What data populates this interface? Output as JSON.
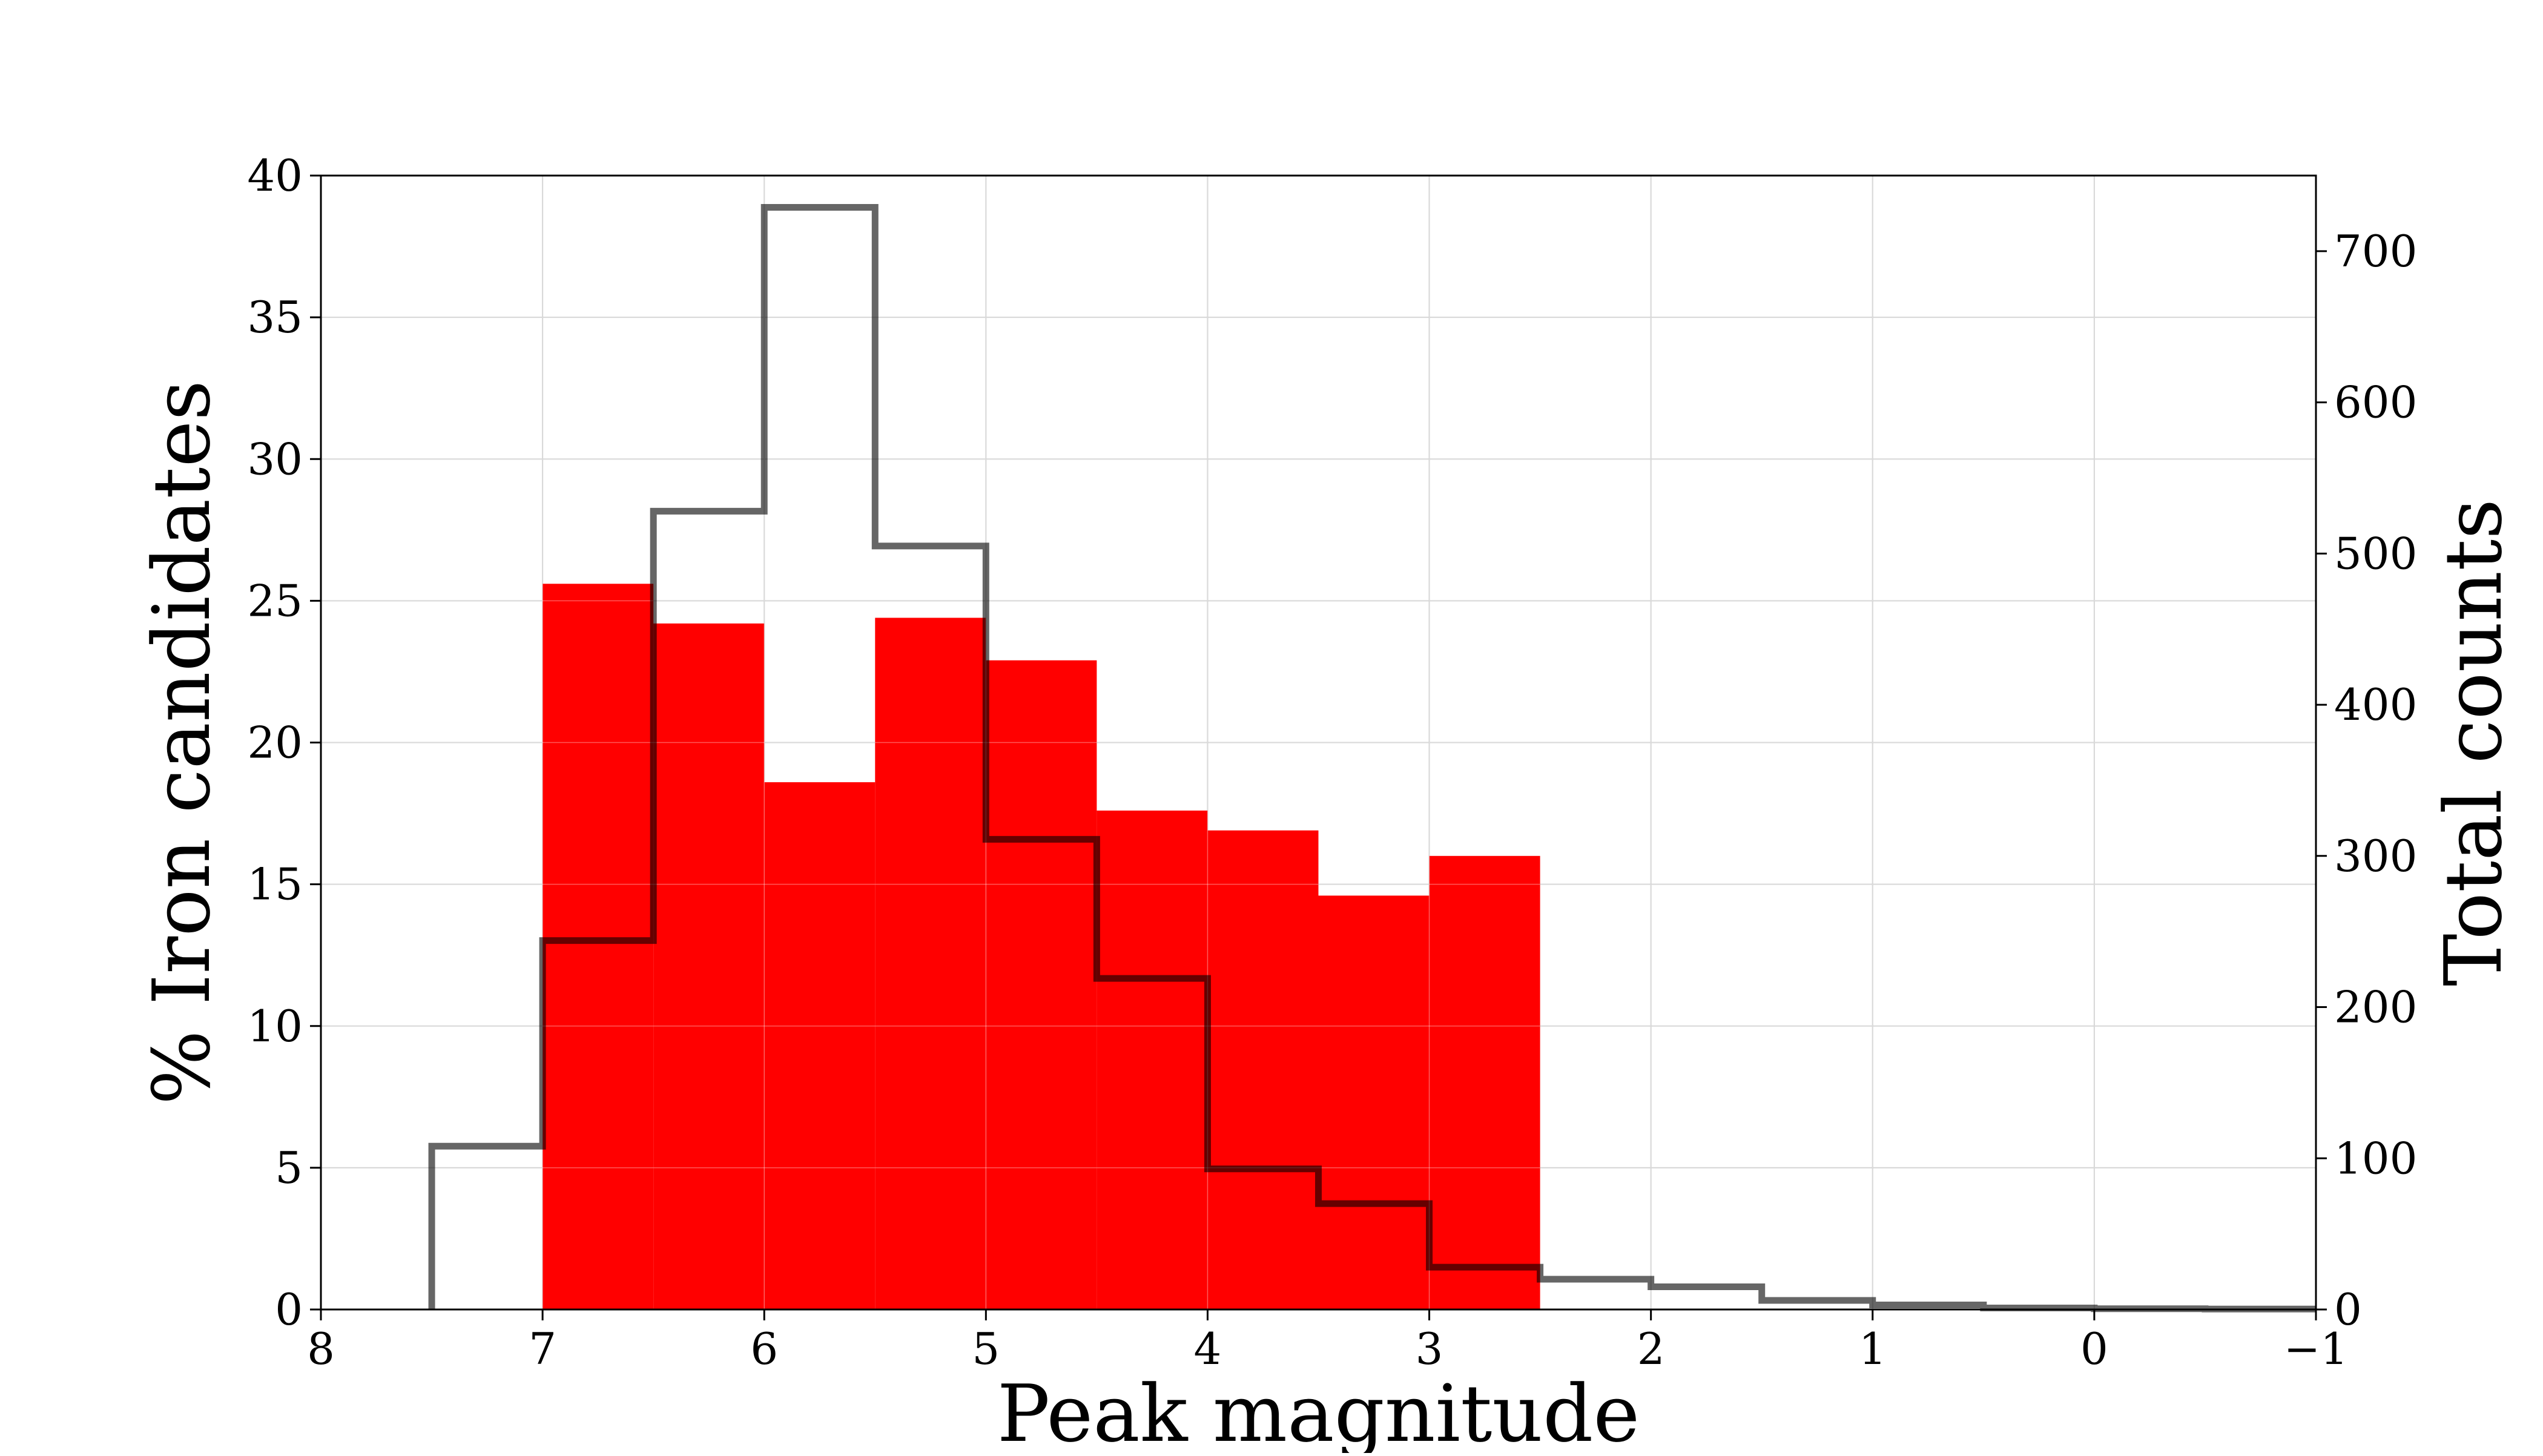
{
  "chart_data": {
    "type": "bar",
    "xlabel": "Peak magnitude",
    "ylabel_left": "% Iron candidates",
    "ylabel_right": "Total counts",
    "x_axis": {
      "range": [
        8,
        -1
      ],
      "inverted": true,
      "ticks": [
        8,
        7,
        6,
        5,
        4,
        3,
        2,
        1,
        0,
        -1
      ],
      "tick_labels": [
        "8",
        "7",
        "6",
        "5",
        "4",
        "3",
        "2",
        "1",
        "0",
        "−1"
      ]
    },
    "y_left_axis": {
      "range": [
        0,
        40
      ],
      "ticks": [
        0,
        5,
        10,
        15,
        20,
        25,
        30,
        35,
        40
      ],
      "tick_labels": [
        "0",
        "5",
        "10",
        "15",
        "20",
        "25",
        "30",
        "35",
        "40"
      ]
    },
    "y_right_axis": {
      "range": [
        0,
        750
      ],
      "ticks": [
        0,
        100,
        200,
        300,
        400,
        500,
        600,
        700
      ],
      "tick_labels": [
        "0",
        "100",
        "200",
        "300",
        "400",
        "500",
        "600",
        "700"
      ]
    },
    "grid": true,
    "series": [
      {
        "kind": "bar",
        "axis": "left",
        "color": "#ff0000",
        "bins": [
          {
            "x_start": 7.0,
            "x_end": 6.5,
            "value": 25.6
          },
          {
            "x_start": 6.5,
            "x_end": 6.0,
            "value": 24.2
          },
          {
            "x_start": 6.0,
            "x_end": 5.5,
            "value": 18.6
          },
          {
            "x_start": 5.5,
            "x_end": 5.0,
            "value": 24.4
          },
          {
            "x_start": 5.0,
            "x_end": 4.5,
            "value": 22.9
          },
          {
            "x_start": 4.5,
            "x_end": 4.0,
            "value": 17.6
          },
          {
            "x_start": 4.0,
            "x_end": 3.5,
            "value": 16.9
          },
          {
            "x_start": 3.5,
            "x_end": 3.0,
            "value": 14.6
          },
          {
            "x_start": 3.0,
            "x_end": 2.5,
            "value": 16.0
          }
        ]
      },
      {
        "kind": "step",
        "axis": "right",
        "color": "#000000",
        "opacity": 0.6,
        "bins": [
          {
            "x_start": 7.5,
            "x_end": 7.0,
            "value": 108
          },
          {
            "x_start": 7.0,
            "x_end": 6.5,
            "value": 244
          },
          {
            "x_start": 6.5,
            "x_end": 6.0,
            "value": 528
          },
          {
            "x_start": 6.0,
            "x_end": 5.5,
            "value": 729
          },
          {
            "x_start": 5.5,
            "x_end": 5.0,
            "value": 505
          },
          {
            "x_start": 5.0,
            "x_end": 4.5,
            "value": 311
          },
          {
            "x_start": 4.5,
            "x_end": 4.0,
            "value": 219
          },
          {
            "x_start": 4.0,
            "x_end": 3.5,
            "value": 93
          },
          {
            "x_start": 3.5,
            "x_end": 3.0,
            "value": 70
          },
          {
            "x_start": 3.0,
            "x_end": 2.5,
            "value": 28
          },
          {
            "x_start": 2.5,
            "x_end": 2.0,
            "value": 20
          },
          {
            "x_start": 2.0,
            "x_end": 1.5,
            "value": 15
          },
          {
            "x_start": 1.5,
            "x_end": 1.0,
            "value": 6
          },
          {
            "x_start": 1.0,
            "x_end": 0.5,
            "value": 3
          },
          {
            "x_start": 0.5,
            "x_end": 0.0,
            "value": 1
          },
          {
            "x_start": 0.0,
            "x_end": -0.5,
            "value": 0.5
          },
          {
            "x_start": -0.5,
            "x_end": -1.0,
            "value": 0.3
          }
        ]
      }
    ]
  }
}
